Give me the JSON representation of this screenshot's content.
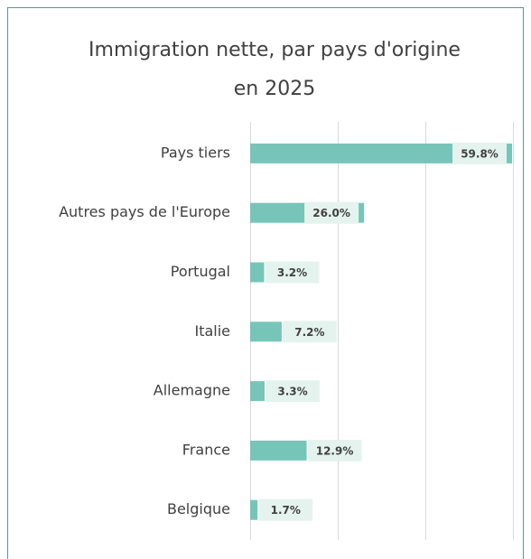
{
  "chart_data": {
    "type": "bar",
    "orientation": "horizontal",
    "title": "Immigration nette, par pays d'origine\nen 2025",
    "categories": [
      "Pays tiers",
      "Autres pays de l'Europe",
      "Portugal",
      "Italie",
      "Allemagne",
      "France",
      "Belgique"
    ],
    "values": [
      59.8,
      26.0,
      3.2,
      7.2,
      3.3,
      12.9,
      1.7
    ],
    "value_labels": [
      "59.8%",
      "26.0%",
      "3.2%",
      "7.2%",
      "3.3%",
      "12.9%",
      "1.7%"
    ],
    "color": "#76c5b8",
    "label_background": "#e5f3ef",
    "xlim": [
      0,
      60
    ],
    "xticks": [
      0,
      20,
      40,
      60
    ],
    "grid": true
  }
}
